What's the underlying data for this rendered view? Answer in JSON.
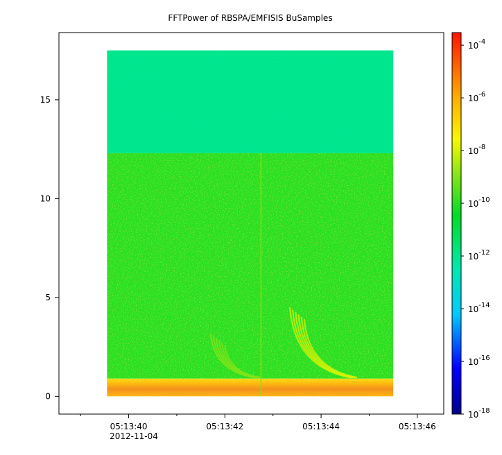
{
  "chart_data": {
    "type": "heatmap",
    "title": "FFTPower of RBSPA/EMFISIS  BuSamples",
    "xlabel": "",
    "ylabel": "",
    "x_ticks": [
      {
        "time_s": 40,
        "label": "05:13:40"
      },
      {
        "time_s": 42,
        "label": "05:13:42"
      },
      {
        "time_s": 44,
        "label": "05:13:44"
      },
      {
        "time_s": 46,
        "label": "05:13:46"
      }
    ],
    "x_minor_ticks_s": [
      39,
      41,
      43,
      45
    ],
    "x_axis_date": "2012-11-04",
    "xlim_s": [
      38.55,
      46.55
    ],
    "data_x_range_s": [
      39.55,
      45.5
    ],
    "ylim": [
      -0.9,
      18.4
    ],
    "data_y_range": [
      0,
      17.5
    ],
    "y_ticks": [
      0,
      5,
      10,
      15
    ],
    "colorbar": {
      "scale": "log",
      "range": [
        1e-18,
        0.0003
      ],
      "ticks": [
        {
          "base": "10",
          "exp": "-4",
          "value": 0.0001
        },
        {
          "base": "10",
          "exp": "-6",
          "value": 1e-06
        },
        {
          "base": "10",
          "exp": "-8",
          "value": 1e-08
        },
        {
          "base": "10",
          "exp": "-10",
          "value": 1e-10
        },
        {
          "base": "10",
          "exp": "-12",
          "value": 1e-12
        },
        {
          "base": "10",
          "exp": "-14",
          "value": 1e-14
        },
        {
          "base": "10",
          "exp": "-16",
          "value": 1e-16
        },
        {
          "base": "10",
          "exp": "-18",
          "value": 1e-18
        }
      ],
      "colormap": [
        "#00008b",
        "#0000ff",
        "#00c8ff",
        "#00e8b0",
        "#00dc28",
        "#7ee41a",
        "#f8f800",
        "#ffa500",
        "#ff1400"
      ]
    },
    "bands": [
      {
        "y_from": 0,
        "y_to": 0.9,
        "level": "1e-7"
      },
      {
        "y_from": 0.9,
        "y_to": 12.3,
        "level": "1e-10"
      },
      {
        "y_from": 12.3,
        "y_to": 17.5,
        "level": "1e-12"
      }
    ],
    "features": [
      {
        "kind": "chorus-rising-tone",
        "t_start_s": 43.35,
        "t_end_s": 44.6,
        "f_start": 4.5,
        "f_end": 0.9,
        "level": "1e-8"
      },
      {
        "kind": "chorus-rising-tone",
        "t_start_s": 41.7,
        "t_end_s": 42.6,
        "f_start": 3.2,
        "f_end": 0.9,
        "level": "1e-9"
      },
      {
        "kind": "broadband-spike",
        "t_s": 42.75,
        "f_from": 0,
        "f_to": 12.3,
        "level": "1e-9"
      }
    ],
    "grid": false,
    "legend": "colorbar-right"
  }
}
